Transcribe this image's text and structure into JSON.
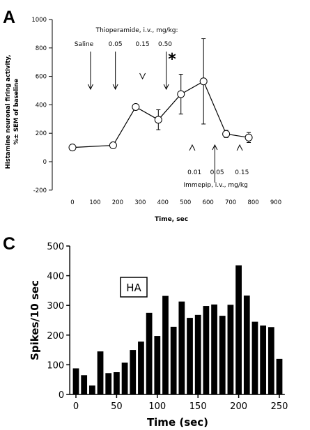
{
  "chart_data": [
    {
      "panel": "A",
      "type": "line",
      "xlabel": "Time, sec",
      "ylabel_line1": "Histamine neuronal firing activity,",
      "ylabel_line2": "%± SEM of baseline",
      "xlim": [
        -50,
        900
      ],
      "ylim": [
        -200,
        1000
      ],
      "x_ticks": [
        0,
        100,
        200,
        300,
        400,
        500,
        600,
        700,
        800,
        900
      ],
      "y_ticks": [
        -200,
        0,
        200,
        400,
        600,
        800,
        1000
      ],
      "series": [
        {
          "x": [
            0,
            180,
            280,
            380,
            480,
            580,
            680,
            780
          ],
          "y": [
            100,
            115,
            385,
            295,
            475,
            565,
            195,
            170
          ],
          "err": [
            0,
            0,
            0,
            70,
            140,
            300,
            25,
            35
          ]
        }
      ],
      "annotations": {
        "top_title": "Thioperamide, i.v., mg/kg:",
        "top_doses": [
          {
            "label": "Saline",
            "x": 20
          },
          {
            "label": "0.05",
            "x": 190
          },
          {
            "label": "0.15",
            "x": 310
          },
          {
            "label": "0.50",
            "x": 410
          }
        ],
        "star": {
          "label": "*",
          "x": 490
        },
        "bottom_title": "Immepip, i.v., mg/kg",
        "bottom_doses": [
          {
            "label": "0.01",
            "x": 540
          },
          {
            "label": "0.05",
            "x": 640
          },
          {
            "label": "0.15",
            "x": 750
          }
        ]
      }
    },
    {
      "panel": "C",
      "type": "bar",
      "xlabel": "Time (sec)",
      "ylabel": "Spikes/10 sec",
      "legend_box": "HA",
      "xlim": [
        -5,
        255
      ],
      "ylim": [
        0,
        500
      ],
      "x_ticks": [
        0,
        50,
        100,
        150,
        200,
        250
      ],
      "y_ticks": [
        0,
        100,
        200,
        300,
        400,
        500
      ],
      "x": [
        0,
        10,
        20,
        30,
        40,
        50,
        60,
        70,
        80,
        90,
        100,
        110,
        120,
        130,
        140,
        150,
        160,
        170,
        180,
        190,
        200,
        210,
        220,
        230,
        240,
        250
      ],
      "values": [
        88,
        65,
        30,
        145,
        72,
        75,
        107,
        150,
        178,
        275,
        197,
        332,
        228,
        313,
        258,
        268,
        298,
        303,
        265,
        302,
        435,
        333,
        245,
        232,
        227,
        120
      ]
    }
  ],
  "labels": {
    "panel_a": "A",
    "panel_c": "C"
  }
}
